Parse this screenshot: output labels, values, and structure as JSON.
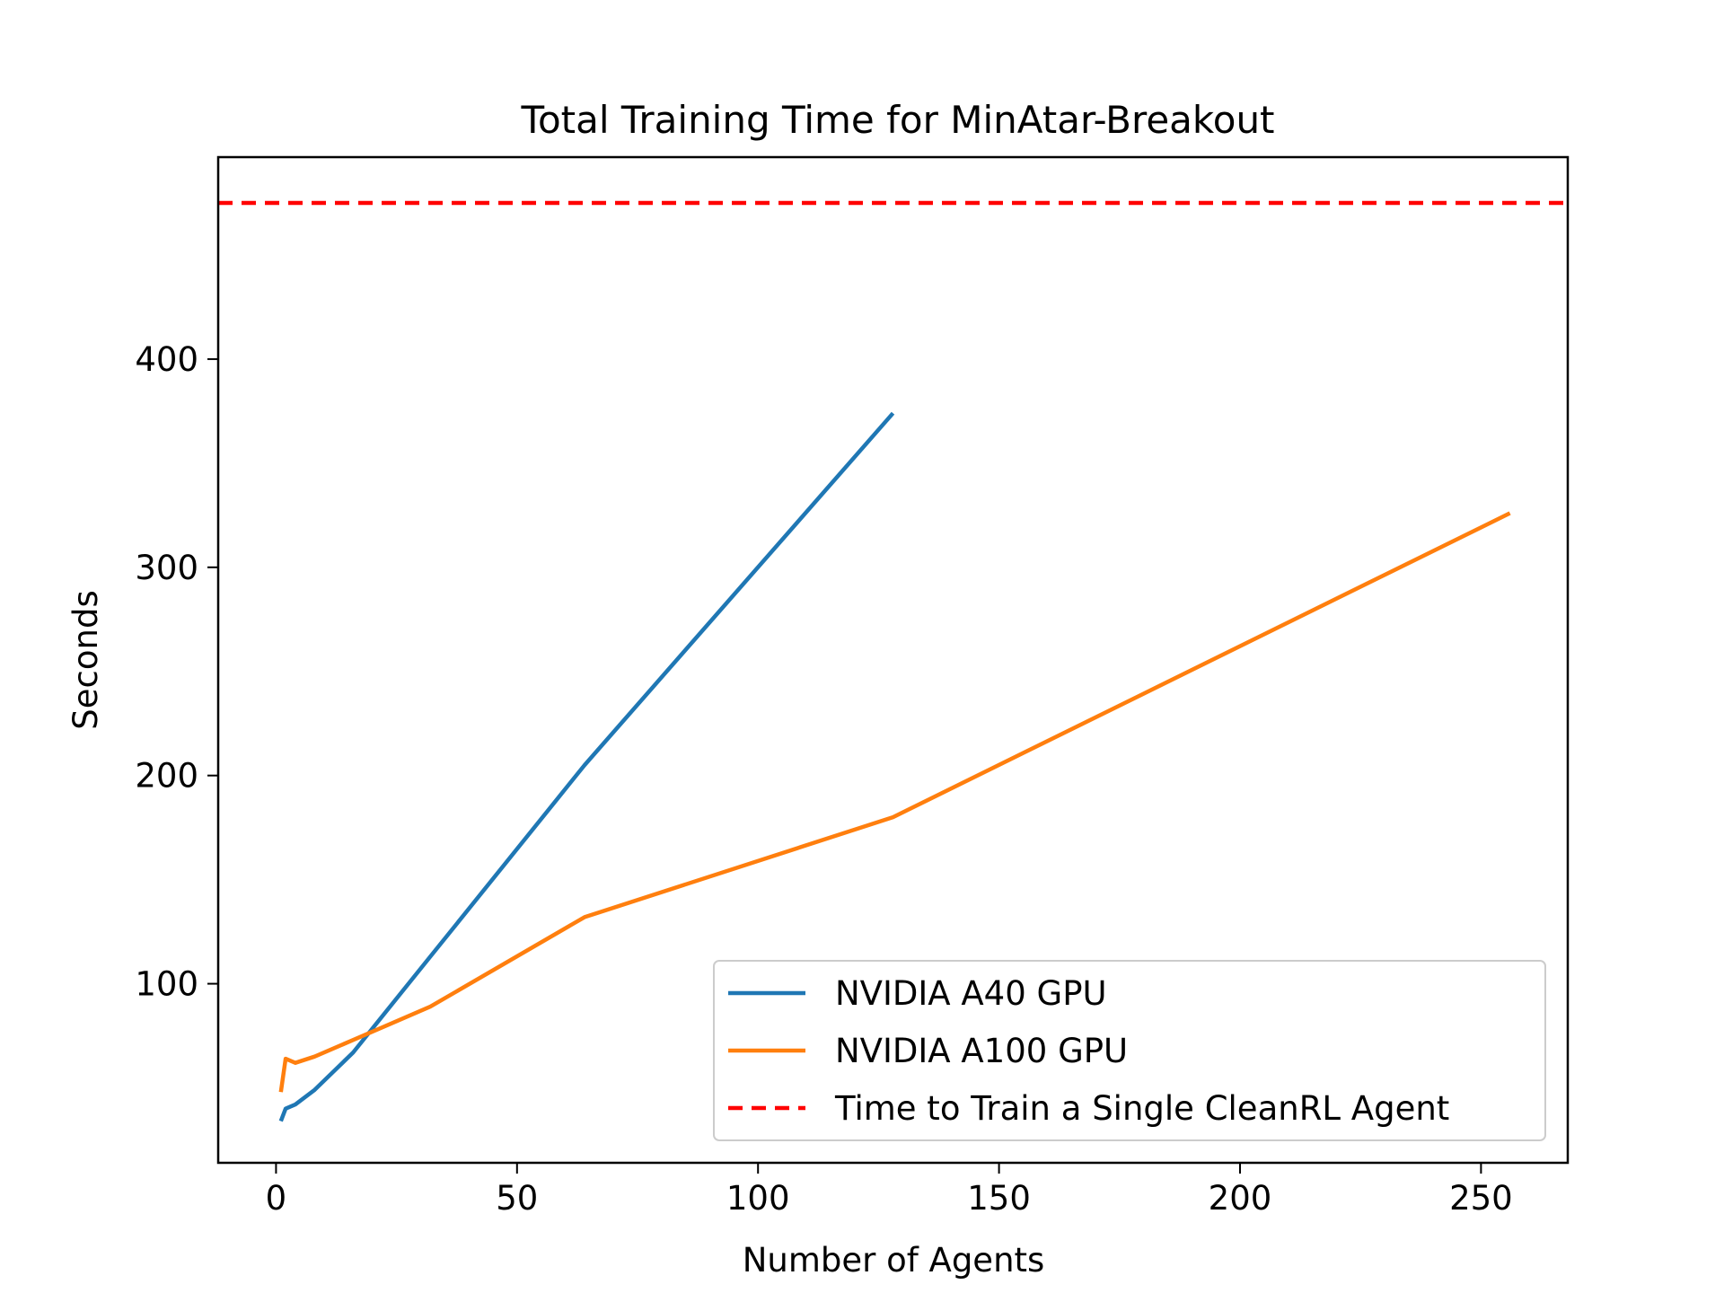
{
  "chart_data": {
    "type": "line",
    "title": "Total Training Time for MinAtar-Breakout",
    "xlabel": "Number of Agents",
    "ylabel": "Seconds",
    "xlim": [
      -12,
      268
    ],
    "ylim": [
      14,
      497
    ],
    "xticks": [
      0,
      50,
      100,
      150,
      200,
      250
    ],
    "yticks": [
      100,
      200,
      300,
      400
    ],
    "grid": false,
    "legend_position": "bottom-right",
    "series": [
      {
        "name": "NVIDIA A40 GPU",
        "color": "#1f77b4",
        "style": "solid",
        "x": [
          1,
          2,
          4,
          8,
          16,
          32,
          64,
          128
        ],
        "y": [
          34,
          40,
          42,
          49,
          67,
          113,
          205,
          374
        ]
      },
      {
        "name": "NVIDIA A100 GPU",
        "color": "#ff7f0e",
        "style": "solid",
        "x": [
          1,
          2,
          4,
          8,
          16,
          32,
          64,
          128,
          256
        ],
        "y": [
          48,
          64,
          62,
          65,
          73,
          89,
          132,
          180,
          326
        ]
      },
      {
        "name": "Time to Train a Single CleanRL Agent",
        "color": "#ff0000",
        "style": "dashed",
        "type": "hline",
        "y": 475
      }
    ]
  }
}
